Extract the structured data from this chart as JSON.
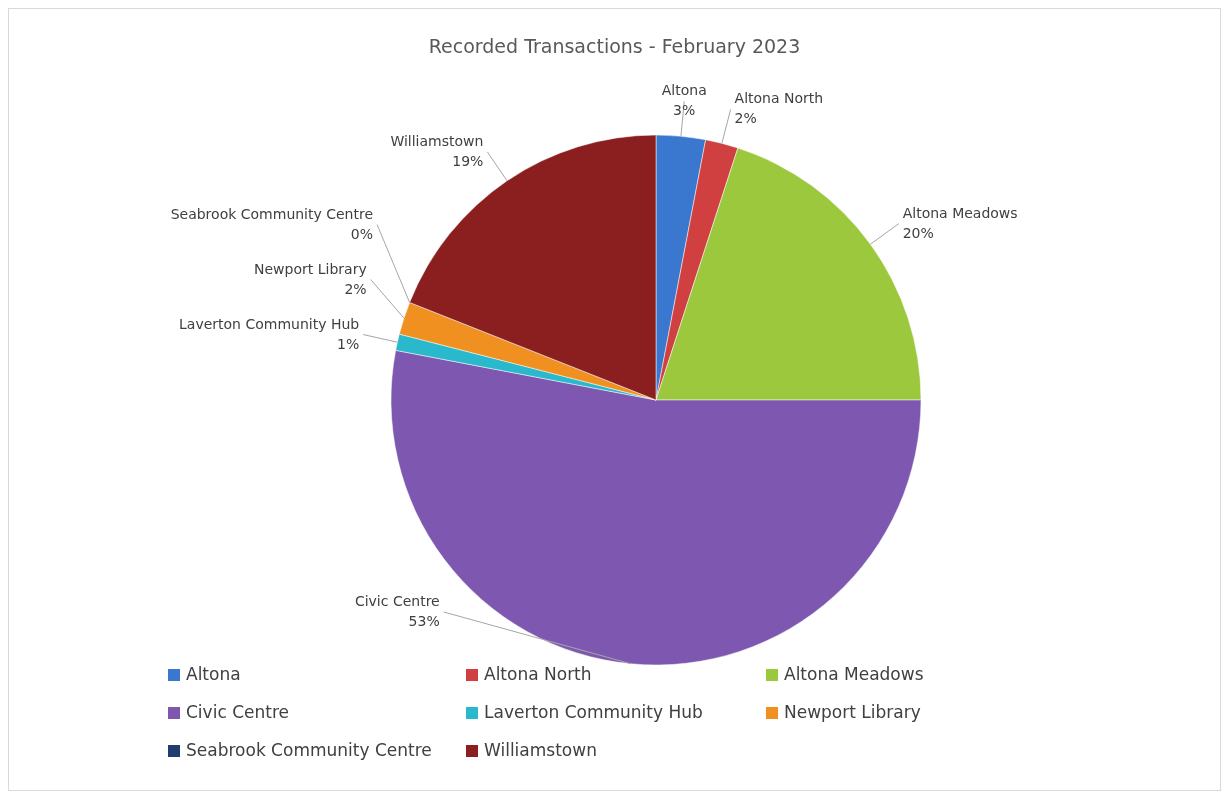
{
  "chart_data": {
    "type": "pie",
    "title": "Recorded Transactions - February 2023",
    "categories": [
      "Altona",
      "Altona North",
      "Altona Meadows",
      "Civic Centre",
      "Laverton Community Hub",
      "Newport Library",
      "Seabrook Community Centre",
      "Williamstown"
    ],
    "values": [
      3,
      2,
      20,
      53,
      1,
      2,
      0,
      19
    ],
    "colors": [
      "#3a78d0",
      "#d04040",
      "#9bc83c",
      "#7e58b0",
      "#2ab8cc",
      "#f09020",
      "#1f3e6e",
      "#8b1f1f"
    ],
    "value_labels": [
      "3%",
      "2%",
      "20%",
      "53%",
      "1%",
      "2%",
      "0%",
      "19%"
    ],
    "legend": "bottom"
  }
}
